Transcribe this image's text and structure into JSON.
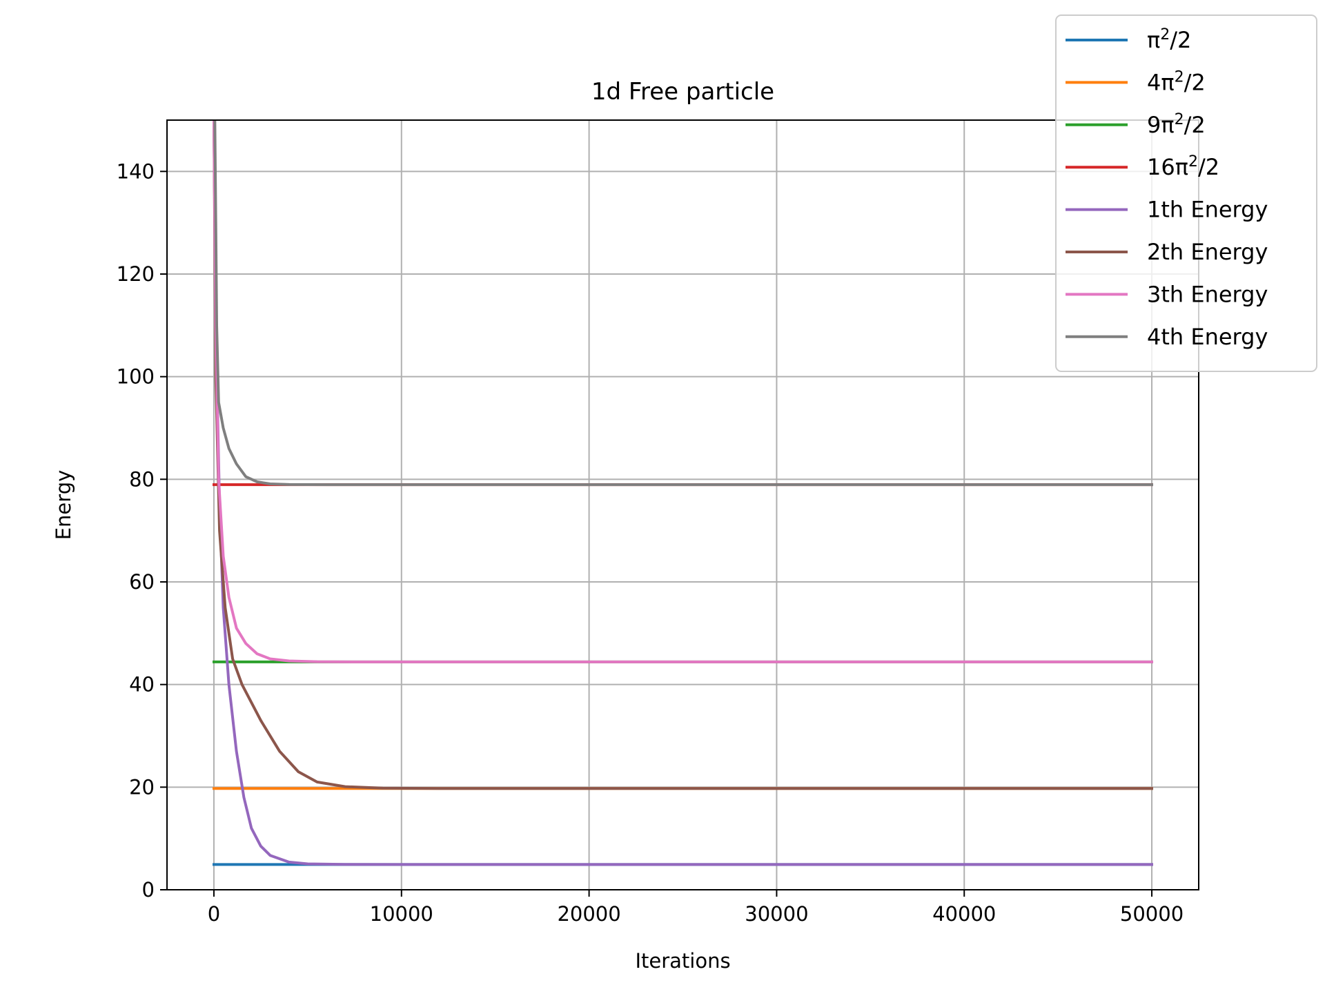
{
  "chart_data": {
    "type": "line",
    "title": "1d Free particle",
    "xlabel": "Iterations",
    "ylabel": "Energy",
    "xlim": [
      -2500,
      52500
    ],
    "ylim": [
      0,
      150
    ],
    "xticks": [
      0,
      10000,
      20000,
      30000,
      40000,
      50000
    ],
    "xtick_labels": [
      "0",
      "10000",
      "20000",
      "30000",
      "40000",
      "50000"
    ],
    "yticks": [
      0,
      20,
      40,
      60,
      80,
      100,
      120,
      140
    ],
    "ytick_labels": [
      "0",
      "20",
      "40",
      "60",
      "80",
      "100",
      "120",
      "140"
    ],
    "grid": true,
    "legend_position": "top-right",
    "series": [
      {
        "name": "π²/2",
        "legend": {
          "pre": "π",
          "sup": "2",
          "post": "/2"
        },
        "color": "#1f77b4",
        "points": [
          [
            0,
            4.93
          ],
          [
            50000,
            4.93
          ]
        ]
      },
      {
        "name": "4π²/2",
        "legend": {
          "pre": "4π",
          "sup": "2",
          "post": "/2"
        },
        "color": "#ff7f0e",
        "points": [
          [
            0,
            19.74
          ],
          [
            50000,
            19.74
          ]
        ]
      },
      {
        "name": "9π²/2",
        "legend": {
          "pre": "9π",
          "sup": "2",
          "post": "/2"
        },
        "color": "#2ca02c",
        "points": [
          [
            0,
            44.41
          ],
          [
            50000,
            44.41
          ]
        ]
      },
      {
        "name": "16π²/2",
        "legend": {
          "pre": "16π",
          "sup": "2",
          "post": "/2"
        },
        "color": "#d62728",
        "points": [
          [
            0,
            78.96
          ],
          [
            50000,
            78.96
          ]
        ]
      },
      {
        "name": "1th Energy",
        "legend": {
          "pre": "1th Energy",
          "sup": "",
          "post": ""
        },
        "color": "#9467bd",
        "points": [
          [
            0,
            150
          ],
          [
            100,
            110
          ],
          [
            300,
            75
          ],
          [
            500,
            55
          ],
          [
            800,
            40
          ],
          [
            1200,
            27
          ],
          [
            1600,
            18
          ],
          [
            2000,
            12
          ],
          [
            2500,
            8.5
          ],
          [
            3000,
            6.7
          ],
          [
            4000,
            5.4
          ],
          [
            5000,
            5.05
          ],
          [
            7000,
            4.95
          ],
          [
            10000,
            4.93
          ],
          [
            50000,
            4.93
          ]
        ]
      },
      {
        "name": "2th Energy",
        "legend": {
          "pre": "2th Energy",
          "sup": "",
          "post": ""
        },
        "color": "#8c564b",
        "points": [
          [
            0,
            150
          ],
          [
            100,
            100
          ],
          [
            300,
            70
          ],
          [
            600,
            55
          ],
          [
            1000,
            45
          ],
          [
            1500,
            40
          ],
          [
            2500,
            33
          ],
          [
            3500,
            27
          ],
          [
            4500,
            23
          ],
          [
            5500,
            21
          ],
          [
            7000,
            20.1
          ],
          [
            9000,
            19.8
          ],
          [
            12000,
            19.74
          ],
          [
            50000,
            19.74
          ]
        ]
      },
      {
        "name": "3th Energy",
        "legend": {
          "pre": "3th Energy",
          "sup": "",
          "post": ""
        },
        "color": "#e377c2",
        "points": [
          [
            0,
            150
          ],
          [
            100,
            110
          ],
          [
            250,
            80
          ],
          [
            500,
            65
          ],
          [
            800,
            57
          ],
          [
            1200,
            51
          ],
          [
            1700,
            48
          ],
          [
            2300,
            46
          ],
          [
            3000,
            45
          ],
          [
            4000,
            44.6
          ],
          [
            5500,
            44.45
          ],
          [
            8000,
            44.41
          ],
          [
            50000,
            44.41
          ]
        ]
      },
      {
        "name": "4th Energy",
        "legend": {
          "pre": "4th Energy",
          "sup": "",
          "post": ""
        },
        "color": "#7f7f7f",
        "points": [
          [
            50,
            150
          ],
          [
            100,
            130
          ],
          [
            150,
            110
          ],
          [
            250,
            95
          ],
          [
            500,
            90
          ],
          [
            800,
            86
          ],
          [
            1200,
            83
          ],
          [
            1700,
            80.5
          ],
          [
            2300,
            79.5
          ],
          [
            3000,
            79.1
          ],
          [
            4000,
            78.98
          ],
          [
            6000,
            78.96
          ],
          [
            50000,
            78.96
          ]
        ]
      }
    ]
  }
}
